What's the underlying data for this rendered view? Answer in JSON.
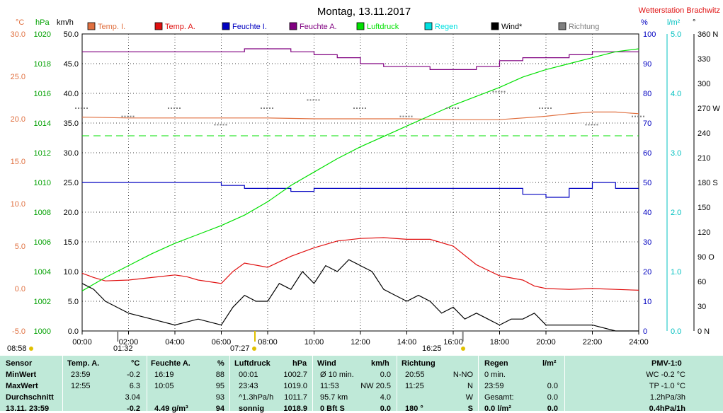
{
  "title": "Montag, 13.11.2017",
  "station": "Wetterstation Brachwitz",
  "colors": {
    "temp_i": "#e07040",
    "temp_a": "#e01010",
    "feuchte_i": "#0000c0",
    "feuchte_a": "#800080",
    "luftdruck": "#00e000",
    "regen": "#00e0e0",
    "wind": "#000000",
    "richtung": "#808080",
    "grid": "#000000",
    "stats_bg": "#bfe9d8"
  },
  "markers": {
    "left": "08:58",
    "marker1": "01:32",
    "marker2": "07:27",
    "marker3": "16:25"
  },
  "chart_data": {
    "type": "line",
    "title": "Montag, 13.11.2017",
    "legend": [
      "Temp. I.",
      "Temp. A.",
      "Feuchte I.",
      "Feuchte A.",
      "Luftdruck",
      "Regen",
      "Wind*",
      "Richtung"
    ],
    "x_range": [
      "00:00",
      "24:00"
    ],
    "x_ticks": [
      "00:00",
      "02:00",
      "04:00",
      "06:00",
      "08:00",
      "10:00",
      "12:00",
      "14:00",
      "16:00",
      "18:00",
      "20:00",
      "22:00",
      "24:00"
    ],
    "axes": {
      "temp_c": {
        "unit": "°C",
        "range": [
          -5,
          30
        ],
        "ticks": [
          "30.0",
          "25.0",
          "20.0",
          "15.0",
          "10.0",
          "5.0",
          "0.0",
          "-5.0"
        ]
      },
      "pressure_hpa": {
        "unit": "hPa",
        "range": [
          1000,
          1020
        ],
        "ticks": [
          "1020",
          "1018",
          "1016",
          "1014",
          "1012",
          "1010",
          "1008",
          "1006",
          "1004",
          "1002",
          "1000"
        ]
      },
      "wind_kmh": {
        "unit": "km/h",
        "range": [
          0,
          50
        ],
        "ticks": [
          "50.0",
          "45.0",
          "40.0",
          "35.0",
          "30.0",
          "25.0",
          "20.0",
          "15.0",
          "10.0",
          "5.0",
          "0.0"
        ]
      },
      "humidity_pct": {
        "unit": "%",
        "range": [
          0,
          100
        ],
        "ticks": [
          "100",
          "90",
          "80",
          "70",
          "60",
          "50",
          "40",
          "30",
          "20",
          "10",
          "0"
        ]
      },
      "rain_lm2": {
        "unit": "l/m²",
        "range": [
          0,
          5
        ],
        "ticks": [
          "5.0",
          "4.0",
          "3.0",
          "2.0",
          "1.0",
          "0.0"
        ]
      },
      "direction_deg": {
        "unit": "°",
        "range": [
          0,
          360
        ],
        "ticks": [
          "360 N",
          "330",
          "300",
          "270 W",
          "240",
          "210",
          "180 S",
          "150",
          "120",
          "90 O",
          "60",
          "30",
          "0 N"
        ]
      }
    },
    "series": [
      {
        "name": "Temp. I.",
        "axis": "temp_c",
        "x": [
          0,
          2,
          4,
          6,
          8,
          10,
          12,
          14,
          16,
          18,
          20,
          21,
          22,
          23,
          24
        ],
        "y": [
          20.2,
          20.1,
          20.1,
          20.1,
          20.1,
          20.0,
          20.0,
          20.0,
          19.9,
          19.9,
          20.3,
          20.6,
          20.8,
          20.8,
          20.6
        ]
      },
      {
        "name": "Temp. A.",
        "axis": "temp_c",
        "x": [
          0,
          0.5,
          1,
          2,
          3,
          4,
          4.5,
          5,
          6,
          6.5,
          7,
          8,
          9,
          10,
          11,
          12,
          13,
          14,
          15,
          16,
          17,
          18,
          19,
          19.5,
          20,
          21,
          22,
          23,
          24
        ],
        "y": [
          1.8,
          1.3,
          0.9,
          1.0,
          1.3,
          1.6,
          1.4,
          1.0,
          0.6,
          2.0,
          3.0,
          2.5,
          3.8,
          4.8,
          5.6,
          5.9,
          6.0,
          5.8,
          5.8,
          5.0,
          2.8,
          1.5,
          1.0,
          0.3,
          0.0,
          -0.1,
          0.0,
          -0.1,
          -0.2
        ]
      },
      {
        "name": "Feuchte I.",
        "axis": "humidity_pct",
        "x": [
          0,
          5,
          6,
          7,
          8,
          9,
          10,
          12,
          14,
          16,
          17,
          18,
          19,
          20,
          21,
          22,
          23,
          24
        ],
        "y": [
          50,
          50,
          49,
          48,
          48,
          47,
          48,
          48,
          48,
          48,
          48,
          48,
          46,
          45,
          48,
          50,
          48,
          48
        ]
      },
      {
        "name": "Feuchte A.",
        "axis": "humidity_pct",
        "x": [
          0,
          2,
          4,
          6,
          7,
          8,
          9,
          10,
          11,
          12,
          13,
          14,
          15,
          16,
          17,
          18,
          19,
          20,
          21,
          22,
          23,
          24
        ],
        "y": [
          94,
          94,
          94,
          94,
          95,
          95,
          94,
          93,
          92,
          90,
          89,
          89,
          88,
          88,
          89,
          91,
          92,
          92,
          93,
          94,
          94,
          94
        ]
      },
      {
        "name": "Luftdruck",
        "axis": "pressure_hpa",
        "x": [
          0,
          1,
          2,
          3,
          4,
          5,
          6,
          7,
          8,
          9,
          10,
          11,
          12,
          13,
          14,
          15,
          16,
          17,
          18,
          19,
          20,
          21,
          22,
          23,
          24
        ],
        "y": [
          1002.7,
          1003.6,
          1004.4,
          1005.2,
          1005.9,
          1006.5,
          1007.1,
          1007.8,
          1008.7,
          1009.8,
          1010.7,
          1011.6,
          1012.4,
          1013.1,
          1013.8,
          1014.5,
          1015.2,
          1015.8,
          1016.4,
          1017.1,
          1017.6,
          1018.0,
          1018.4,
          1018.8,
          1019.0
        ]
      },
      {
        "name": "Wind*",
        "axis": "wind_kmh",
        "x": [
          0,
          0.5,
          1,
          1.5,
          2,
          3,
          4,
          5,
          6,
          6.5,
          7,
          7.5,
          8,
          8.5,
          9,
          9.5,
          10,
          10.5,
          11,
          11.5,
          12,
          12.5,
          13,
          13.5,
          14,
          14.5,
          15,
          15.5,
          16,
          16.5,
          17,
          17.5,
          18,
          18.5,
          19,
          19.5,
          20,
          21,
          22,
          23,
          24
        ],
        "y": [
          8,
          7,
          5,
          4,
          3,
          2,
          1,
          2,
          1,
          4,
          6,
          5,
          5,
          8,
          7,
          10,
          8,
          11,
          10,
          12,
          11,
          10,
          7,
          6,
          5,
          6,
          5,
          3,
          4,
          2,
          3,
          2,
          1,
          2,
          2,
          3,
          1,
          1,
          1,
          0,
          0
        ]
      },
      {
        "name": "Richtung",
        "axis": "direction_deg",
        "x": [
          0,
          2,
          4,
          6,
          8,
          10,
          12,
          14,
          16,
          18,
          20,
          22,
          24
        ],
        "y": [
          270,
          260,
          270,
          250,
          270,
          280,
          270,
          260,
          270,
          290,
          270,
          250,
          260
        ]
      }
    ],
    "reference_lines": [
      {
        "axis": "temp_c",
        "y": 18.0,
        "style": "dashed",
        "color": "#00e000"
      }
    ]
  },
  "stats": {
    "headers": {
      "sensor": "Sensor",
      "temp_a": "Temp. A.",
      "temp_unit": "°C",
      "feuchte_a": "Feuchte A.",
      "feuchte_unit": "%",
      "luftdruck": "Luftdruck",
      "luftdruck_unit": "hPa",
      "wind": "Wind",
      "wind_unit": "km/h",
      "richtung": "Richtung",
      "regen": "Regen",
      "regen_unit": "l/m²",
      "pmv": "PMV-1:0"
    },
    "rows": [
      {
        "label": "MinWert",
        "ta_time": "23:59",
        "ta_val": "-0.2",
        "fa_time": "16:19",
        "fa_val": "88",
        "ld_time": "00:01",
        "ld_val": "1002.7",
        "w_label": "Ø 10 min.",
        "w_val": "0.0",
        "r_time": "20:55",
        "r_val": "N-NO",
        "rg_label": "0 min.",
        "rg_val": "",
        "pmv": "WC -0.2 °C"
      },
      {
        "label": "MaxWert",
        "ta_time": "12:55",
        "ta_val": "6.3",
        "fa_time": "10:05",
        "fa_val": "95",
        "ld_time": "23:43",
        "ld_val": "1019.0",
        "w_label": "11:53",
        "w_val": "NW 20.5",
        "r_time": "11:25",
        "r_val": "N",
        "rg_label": "23:59",
        "rg_val": "0.0",
        "pmv": "TP -1.0 °C"
      },
      {
        "label": "Durchschnitt",
        "ta_time": "",
        "ta_val": "3.04",
        "fa_time": "",
        "fa_val": "93",
        "ld_time": "^1.3hPa/h",
        "ld_val": "1011.7",
        "w_label": "95.7 km",
        "w_val": "4.0",
        "r_time": "",
        "r_val": "W",
        "rg_label": "Gesamt:",
        "rg_val": "0.0",
        "pmv": "1.2hPa/3h"
      },
      {
        "label": "13.11. 23:59",
        "ta_time": "",
        "ta_val": "-0.2",
        "fa_time": "4.49 g/m³",
        "fa_val": "94",
        "ld_time": "sonnig",
        "ld_val": "1018.9",
        "w_label": "0 Bft S",
        "w_val": "0.0",
        "r_time": "180 °",
        "r_val": "S",
        "rg_label": "0.0 l/m²",
        "rg_val": "0.0",
        "pmv": "0.4hPa/1h"
      }
    ]
  }
}
